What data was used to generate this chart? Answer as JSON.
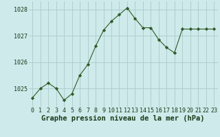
{
  "x": [
    0,
    1,
    2,
    3,
    4,
    5,
    6,
    7,
    8,
    9,
    10,
    11,
    12,
    13,
    14,
    15,
    16,
    17,
    18,
    19,
    20,
    21,
    22,
    23
  ],
  "y": [
    1024.65,
    1025.0,
    1025.2,
    1025.0,
    1024.55,
    1024.8,
    1025.5,
    1025.9,
    1026.6,
    1027.2,
    1027.55,
    1027.8,
    1028.05,
    1027.65,
    1027.3,
    1027.3,
    1026.85,
    1026.55,
    1026.35,
    1027.25,
    1027.25,
    1027.25,
    1027.25,
    1027.25
  ],
  "line_color": "#2d5a27",
  "marker": "D",
  "marker_size": 2.2,
  "bg_color": "#ceeaea",
  "grid_color": "#aacaca",
  "xlabel": "Graphe pression niveau de la mer (hPa)",
  "xlabel_fontsize": 7.5,
  "ylim": [
    1024.3,
    1028.3
  ],
  "yticks": [
    1025,
    1026,
    1027,
    1028
  ],
  "xticks": [
    0,
    1,
    2,
    3,
    4,
    5,
    6,
    7,
    8,
    9,
    10,
    11,
    12,
    13,
    14,
    15,
    16,
    17,
    18,
    19,
    20,
    21,
    22,
    23
  ],
  "title_color": "#1a3a18",
  "tick_fontsize": 6.0
}
